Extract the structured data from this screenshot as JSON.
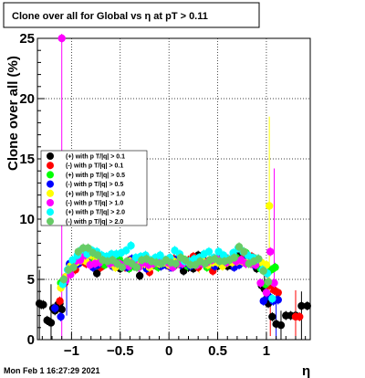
{
  "chart_data": {
    "type": "scatter",
    "title": "Clone  over all for Global vs   η at pT > 0.11",
    "xlabel": "η",
    "ylabel": "Clone  over all (%)",
    "xlim": [
      -1.35,
      1.45
    ],
    "ylim": [
      0,
      25
    ],
    "x_ticks": [
      {
        "value": -1,
        "label": "−1"
      },
      {
        "value": -0.5,
        "label": "−0.5"
      },
      {
        "value": 0,
        "label": "0"
      },
      {
        "value": 0.5,
        "label": "0.5"
      },
      {
        "value": 1,
        "label": "1"
      }
    ],
    "y_ticks": [
      {
        "value": 0,
        "label": "0"
      },
      {
        "value": 5,
        "label": "5"
      },
      {
        "value": 10,
        "label": "10"
      },
      {
        "value": 15,
        "label": "15"
      },
      {
        "value": 20,
        "label": "20"
      },
      {
        "value": 25,
        "label": "25"
      }
    ],
    "grid": true,
    "legend_position": "left-middle",
    "timestamp": "Mon Feb  1 16:27:29 2021",
    "series": [
      {
        "name": "(+) with p T/|q| > 0.1",
        "color": "#000000",
        "x": [
          -1.33,
          -1.31,
          -1.29,
          -1.25,
          -1.23,
          -1.21,
          -1.19,
          -1.17,
          -1.14,
          -1.12,
          -1.1,
          -1.06,
          -1.02,
          -0.97,
          -0.92,
          -0.88,
          -0.83,
          -0.79,
          -0.74,
          -0.7,
          -0.65,
          -0.6,
          -0.55,
          -0.5,
          -0.45,
          -0.4,
          -0.35,
          -0.3,
          -0.25,
          -0.2,
          -0.15,
          -0.1,
          -0.05,
          0,
          0.05,
          0.1,
          0.15,
          0.2,
          0.25,
          0.3,
          0.35,
          0.4,
          0.45,
          0.5,
          0.55,
          0.6,
          0.65,
          0.7,
          0.75,
          0.8,
          0.85,
          0.9,
          0.95,
          0.98,
          1.02,
          1.06,
          1.1,
          1.15,
          1.2,
          1.25,
          1.3,
          1.36,
          1.42
        ],
        "y": [
          3.0,
          2.9,
          2.9,
          1.6,
          1.5,
          1.4,
          2.6,
          2.4,
          2.9,
          3.0,
          2.5,
          5.2,
          5.8,
          5.9,
          6.6,
          6.7,
          6.9,
          6.3,
          5.5,
          6.4,
          6.8,
          6.9,
          6.2,
          5.9,
          6.3,
          6.2,
          6.1,
          5.3,
          6.6,
          6.1,
          6.4,
          6.2,
          6.3,
          6.6,
          6.1,
          6.7,
          5.7,
          6.0,
          5.9,
          7.0,
          6.6,
          6.4,
          6.3,
          6.1,
          6.9,
          6.1,
          6.1,
          6.9,
          7.1,
          6.5,
          6.4,
          5.9,
          4.5,
          4.2,
          3.0,
          1.9,
          1.3,
          1.2,
          2.0,
          2.0,
          2.0,
          2.8,
          2.8
        ]
      },
      {
        "name": "(-) with p T/|q| > 0.1",
        "color": "#ff0000",
        "x": [
          -1.12,
          -1.07,
          -1.02,
          -0.96,
          -0.91,
          -0.85,
          -0.8,
          -0.75,
          -0.7,
          -0.65,
          -0.6,
          -0.55,
          -0.5,
          -0.45,
          -0.4,
          -0.35,
          -0.3,
          -0.25,
          -0.2,
          -0.15,
          -0.1,
          -0.05,
          0,
          0.05,
          0.1,
          0.15,
          0.2,
          0.25,
          0.3,
          0.35,
          0.4,
          0.45,
          0.5,
          0.55,
          0.6,
          0.65,
          0.7,
          0.75,
          0.8,
          0.85,
          0.9,
          0.96,
          1.03,
          1.08,
          1.12,
          1.3,
          1.34
        ],
        "y": [
          3.2,
          4.7,
          5.9,
          5.8,
          6.4,
          6.3,
          7.2,
          6.9,
          6.0,
          6.5,
          6.7,
          6.2,
          6.3,
          6.0,
          6.6,
          6.4,
          6.8,
          6.2,
          5.6,
          6.2,
          6.7,
          6.3,
          6.1,
          6.7,
          6.6,
          6.5,
          6.6,
          6.9,
          6.0,
          6.5,
          6.5,
          5.7,
          6.6,
          6.2,
          6.7,
          6.7,
          6.4,
          6.7,
          6.8,
          6.9,
          6.4,
          6.2,
          4.5,
          4.1,
          3.9,
          1.9,
          1.9
        ]
      },
      {
        "name": "(+) with p T/|q| > 0.5",
        "color": "#00ff00",
        "x": [
          -1.11,
          -1.06,
          -1.01,
          -0.96,
          -0.91,
          -0.86,
          -0.81,
          -0.76,
          -0.71,
          -0.66,
          -0.61,
          -0.56,
          -0.51,
          -0.46,
          -0.41,
          -0.36,
          -0.31,
          -0.26,
          -0.21,
          -0.16,
          -0.11,
          -0.06,
          -0.01,
          0.04,
          0.09,
          0.14,
          0.19,
          0.24,
          0.29,
          0.34,
          0.39,
          0.44,
          0.49,
          0.54,
          0.59,
          0.64,
          0.69,
          0.74,
          0.79,
          0.84,
          0.89,
          0.94,
          0.99,
          1.05,
          1.09
        ],
        "y": [
          4.7,
          5.0,
          6.0,
          6.5,
          6.6,
          7.2,
          6.6,
          6.8,
          6.8,
          6.2,
          6.6,
          6.2,
          6.7,
          6.3,
          5.9,
          6.1,
          6.2,
          6.6,
          6.2,
          6.2,
          6.0,
          6.4,
          6.3,
          6.0,
          6.7,
          6.7,
          6.1,
          6.4,
          6.4,
          6.6,
          6.0,
          6.5,
          6.3,
          6.2,
          6.6,
          6.7,
          6.8,
          6.4,
          7.2,
          6.8,
          6.7,
          5.9,
          4.6,
          5.8,
          6.0
        ]
      },
      {
        "name": "(-) with p T/|q| > 0.5",
        "color": "#0000ff",
        "x": [
          -1.17,
          -1.11,
          -1.07,
          -1.02,
          -0.98,
          -0.93,
          -0.88,
          -0.83,
          -0.78,
          -0.73,
          -0.68,
          -0.63,
          -0.58,
          -0.53,
          -0.48,
          -0.43,
          -0.38,
          -0.33,
          -0.28,
          -0.23,
          -0.18,
          -0.13,
          -0.08,
          -0.03,
          0.02,
          0.07,
          0.12,
          0.17,
          0.22,
          0.27,
          0.32,
          0.37,
          0.42,
          0.47,
          0.52,
          0.57,
          0.62,
          0.67,
          0.72,
          0.77,
          0.82,
          0.87,
          0.92,
          0.97,
          1.02,
          1.07,
          1.12
        ],
        "y": [
          2.6,
          1.9,
          4.8,
          6.3,
          6.4,
          6.3,
          6.7,
          6.8,
          6.0,
          6.2,
          6.9,
          6.6,
          6.1,
          6.3,
          6.1,
          6.0,
          6.7,
          6.5,
          6.3,
          5.9,
          6.5,
          6.5,
          6.1,
          6.2,
          6.0,
          6.6,
          6.2,
          6.4,
          6.1,
          6.2,
          6.4,
          6.4,
          6.5,
          6.1,
          6.4,
          6.3,
          6.5,
          6.0,
          6.2,
          6.5,
          6.8,
          6.2,
          6.5,
          3.2,
          3.6,
          3.2,
          3.3
        ]
      },
      {
        "name": "(+) with p T/|q| > 1.0",
        "color": "#ffff00",
        "x": [
          -1.11,
          -1.06,
          -1.01,
          -0.95,
          -0.9,
          -0.85,
          -0.8,
          -0.75,
          -0.7,
          -0.65,
          -0.6,
          -0.55,
          -0.5,
          -0.45,
          -0.4,
          -0.35,
          -0.3,
          -0.25,
          -0.2,
          -0.15,
          -0.1,
          -0.05,
          0,
          0.05,
          0.1,
          0.15,
          0.2,
          0.25,
          0.3,
          0.35,
          0.4,
          0.45,
          0.5,
          0.55,
          0.6,
          0.65,
          0.7,
          0.75,
          0.8,
          0.85,
          0.9,
          0.95,
          1.0,
          1.03
        ],
        "y": [
          4.3,
          5.2,
          6.1,
          6.4,
          6.6,
          6.5,
          7.0,
          6.5,
          6.9,
          6.8,
          6.3,
          6.0,
          6.2,
          6.2,
          6.5,
          6.5,
          6.1,
          6.3,
          6.0,
          6.4,
          6.3,
          6.4,
          6.2,
          6.5,
          6.3,
          6.5,
          6.4,
          6.3,
          6.3,
          6.5,
          6.2,
          6.4,
          6.4,
          6.1,
          6.4,
          6.4,
          6.5,
          6.5,
          6.4,
          6.3,
          6.6,
          6.4,
          6.2,
          11.1
        ]
      },
      {
        "name": "(-) with p T/|q| > 1.0",
        "color": "#ff00ff",
        "x": [
          -1.1,
          -1.06,
          -1.01,
          -0.96,
          -0.91,
          -0.86,
          -0.81,
          -0.76,
          -0.71,
          -0.66,
          -0.61,
          -0.56,
          -0.51,
          -0.46,
          -0.41,
          -0.36,
          -0.31,
          -0.26,
          -0.21,
          -0.16,
          -0.11,
          -0.06,
          -0.01,
          0.04,
          0.09,
          0.14,
          0.19,
          0.24,
          0.29,
          0.34,
          0.39,
          0.44,
          0.49,
          0.54,
          0.59,
          0.64,
          0.69,
          0.74,
          0.79,
          0.84,
          0.89,
          0.94,
          1.0,
          1.04,
          1.08
        ],
        "y": [
          25.0,
          4.9,
          5.4,
          6.5,
          6.6,
          7.0,
          6.2,
          6.3,
          6.4,
          6.7,
          6.3,
          6.4,
          6.3,
          6.2,
          6.1,
          6.5,
          6.0,
          6.4,
          6.2,
          6.3,
          6.6,
          6.6,
          6.4,
          6.0,
          6.3,
          6.3,
          6.5,
          6.3,
          6.2,
          6.3,
          6.4,
          6.6,
          6.7,
          6.7,
          6.4,
          6.7,
          6.5,
          6.6,
          6.3,
          6.3,
          6.2,
          4.7,
          3.9,
          7.3,
          4.7
        ]
      },
      {
        "name": "(+) with p T/|q| > 2.0",
        "color": "#00ffff",
        "x": [
          -1.09,
          -1.04,
          -0.99,
          -0.94,
          -0.89,
          -0.84,
          -0.79,
          -0.74,
          -0.69,
          -0.64,
          -0.59,
          -0.54,
          -0.49,
          -0.44,
          -0.39,
          -0.34,
          -0.29,
          -0.24,
          -0.19,
          -0.14,
          -0.09,
          -0.04,
          0.01,
          0.06,
          0.11,
          0.16,
          0.21,
          0.26,
          0.31,
          0.36,
          0.41,
          0.46,
          0.51,
          0.56,
          0.61,
          0.66,
          0.71,
          0.76,
          0.81,
          0.86,
          0.91,
          0.96,
          1.01,
          1.06
        ],
        "y": [
          4.6,
          5.8,
          6.6,
          7.0,
          7.5,
          7.1,
          7.4,
          7.3,
          7.0,
          6.9,
          7.1,
          7.1,
          7.2,
          7.4,
          7.8,
          6.8,
          6.9,
          7.0,
          6.6,
          6.8,
          7.0,
          6.6,
          6.8,
          7.4,
          7.1,
          6.5,
          6.5,
          6.7,
          6.8,
          7.1,
          7.3,
          6.8,
          7.3,
          7.0,
          6.7,
          7.2,
          7.6,
          7.3,
          7.0,
          6.8,
          6.7,
          5.8,
          5.5,
          3.4
        ]
      },
      {
        "name": "(-) with p T/|q| > 2.0",
        "color": "#66cc66",
        "x": [
          -1.08,
          -1.03,
          -0.98,
          -0.93,
          -0.88,
          -0.83,
          -0.78,
          -0.73,
          -0.68,
          -0.63,
          -0.58,
          -0.53,
          -0.48,
          -0.43,
          -0.38,
          -0.33,
          -0.28,
          -0.23,
          -0.18,
          -0.13,
          -0.08,
          -0.03,
          0.02,
          0.07,
          0.12,
          0.17,
          0.22,
          0.27,
          0.32,
          0.37,
          0.42,
          0.47,
          0.52,
          0.57,
          0.62,
          0.67,
          0.72,
          0.77,
          0.82,
          0.87,
          0.92,
          0.97,
          1.02
        ],
        "y": [
          5.0,
          5.8,
          6.0,
          7.3,
          7.6,
          7.6,
          7.2,
          7.0,
          6.6,
          6.5,
          6.6,
          6.3,
          6.0,
          6.5,
          6.3,
          6.0,
          6.6,
          6.7,
          6.5,
          6.4,
          6.3,
          6.6,
          6.4,
          6.3,
          6.8,
          6.6,
          6.2,
          6.2,
          6.5,
          6.3,
          6.6,
          6.7,
          6.5,
          6.5,
          6.6,
          6.8,
          7.7,
          7.3,
          6.3,
          6.5,
          6.7,
          5.7,
          4.8
        ]
      }
    ],
    "spikes": [
      {
        "x": -1.33,
        "low": 0.0,
        "high": 5.8,
        "color": "#000000"
      },
      {
        "x": -1.21,
        "low": 0.0,
        "high": 4.6,
        "color": "#000000"
      },
      {
        "x": -1.1,
        "low": 0.0,
        "high": 5.5,
        "color": "#ff00ff"
      },
      {
        "x": -1.1,
        "low": 5.0,
        "high": 25.0,
        "color": "#ff00ff"
      },
      {
        "x": -1.05,
        "low": 2.0,
        "high": 5.5,
        "color": "#0000ff"
      },
      {
        "x": -0.31,
        "low": 5.1,
        "high": 7.1,
        "color": "#ff00ff"
      },
      {
        "x": 0.31,
        "low": 5.5,
        "high": 7.0,
        "color": "#ffff00"
      },
      {
        "x": 0.98,
        "low": 3.4,
        "high": 5.3,
        "color": "#000000"
      },
      {
        "x": 1.03,
        "low": 4.6,
        "high": 18.5,
        "color": "#ffff00"
      },
      {
        "x": 1.04,
        "low": 0.3,
        "high": 4.1,
        "color": "#ff0000"
      },
      {
        "x": 1.08,
        "low": 4.0,
        "high": 14.2,
        "color": "#ff00ff"
      },
      {
        "x": 1.1,
        "low": 0.0,
        "high": 3.8,
        "color": "#0000ff"
      },
      {
        "x": 1.15,
        "low": 0.0,
        "high": 2.4,
        "color": "#000000"
      },
      {
        "x": 1.3,
        "low": 0.0,
        "high": 4.1,
        "color": "#ff0000"
      },
      {
        "x": 1.36,
        "low": 0.0,
        "high": 4.0,
        "color": "#000000"
      }
    ]
  }
}
